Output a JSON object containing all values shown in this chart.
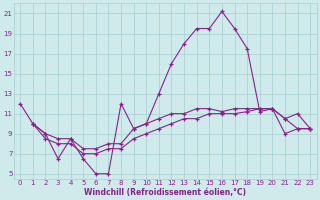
{
  "xlabel": "Windchill (Refroidissement éolien,°C)",
  "background_color": "#ceeaea",
  "grid_color": "#aacece",
  "line_color": "#882288",
  "xlim": [
    -0.5,
    23.5
  ],
  "ylim": [
    4.5,
    22
  ],
  "xticks": [
    0,
    1,
    2,
    3,
    4,
    5,
    6,
    7,
    8,
    9,
    10,
    11,
    12,
    13,
    14,
    15,
    16,
    17,
    18,
    19,
    20,
    21,
    22,
    23
  ],
  "yticks": [
    5,
    7,
    9,
    11,
    13,
    15,
    17,
    19,
    21
  ],
  "line1_x": [
    0,
    1,
    2,
    3,
    4,
    5,
    6,
    7,
    8,
    9,
    10,
    11,
    12,
    13,
    14,
    15,
    16,
    17,
    18,
    19,
    20,
    21,
    22,
    23
  ],
  "line1_y": [
    12,
    10,
    9,
    6.5,
    8.5,
    6.5,
    5,
    5,
    12,
    9.5,
    10,
    13,
    16,
    18,
    19.5,
    19.5,
    21.2,
    19.5,
    17.5,
    11.2,
    11.5,
    10.5,
    11,
    9.5
  ],
  "line2_x": [
    1,
    2,
    3,
    4,
    5,
    6,
    7,
    8,
    9,
    10,
    11,
    12,
    13,
    14,
    15,
    16,
    17,
    18,
    19,
    20,
    21,
    22,
    23
  ],
  "line2_y": [
    10,
    9,
    8.5,
    8.5,
    7.5,
    7.5,
    8,
    8,
    9.5,
    10,
    10.5,
    11,
    11,
    11.5,
    11.5,
    11.2,
    11.5,
    11.5,
    11.5,
    11.5,
    10.5,
    9.5,
    9.5
  ],
  "line3_x": [
    1,
    2,
    3,
    4,
    5,
    6,
    7,
    8,
    9,
    10,
    11,
    12,
    13,
    14,
    15,
    16,
    17,
    18,
    19,
    20,
    21,
    22,
    23
  ],
  "line3_y": [
    10,
    8.5,
    8,
    8,
    7,
    7,
    7.5,
    7.5,
    8.5,
    9,
    9.5,
    10,
    10.5,
    10.5,
    11,
    11,
    11,
    11.2,
    11.5,
    11.5,
    9,
    9.5,
    9.5
  ]
}
